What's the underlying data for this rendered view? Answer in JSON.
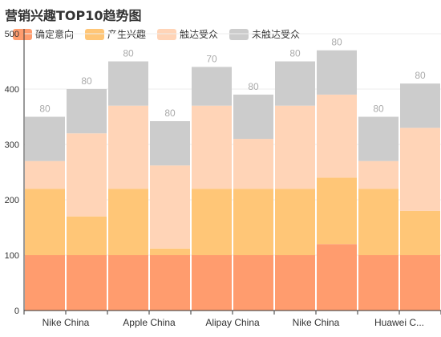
{
  "chart_data": {
    "type": "bar",
    "stacked": true,
    "title": "营销兴趣TOP10趋势图",
    "legend_position": "top-left",
    "categories": [
      "Nike China",
      "",
      "Apple China",
      "",
      "Alipay China",
      "",
      "Nike China",
      "",
      "Huawei C...",
      ""
    ],
    "series": [
      {
        "name": "确定意向",
        "color": "#ff9c6e",
        "values": [
          100,
          100,
          100,
          100,
          100,
          100,
          100,
          120,
          100,
          100
        ]
      },
      {
        "name": "产生兴趣",
        "color": "#ffc677",
        "values": [
          120,
          70,
          120,
          12,
          120,
          120,
          120,
          120,
          120,
          80
        ]
      },
      {
        "name": "触达受众",
        "color": "#ffd4b7",
        "values": [
          50,
          150,
          150,
          150,
          150,
          90,
          150,
          150,
          50,
          150
        ]
      },
      {
        "name": "未触达受众",
        "color": "#cccccc",
        "values": [
          80,
          80,
          80,
          80,
          70,
          80,
          80,
          80,
          80,
          80
        ]
      }
    ],
    "data_labels": [
      "80",
      "80",
      "80",
      "80",
      "70",
      "80",
      "80",
      "80",
      "80",
      "80"
    ],
    "ylim": [
      0,
      500
    ],
    "yticks": [
      "0",
      "100",
      "200",
      "300",
      "400",
      "500"
    ],
    "grid": true
  }
}
